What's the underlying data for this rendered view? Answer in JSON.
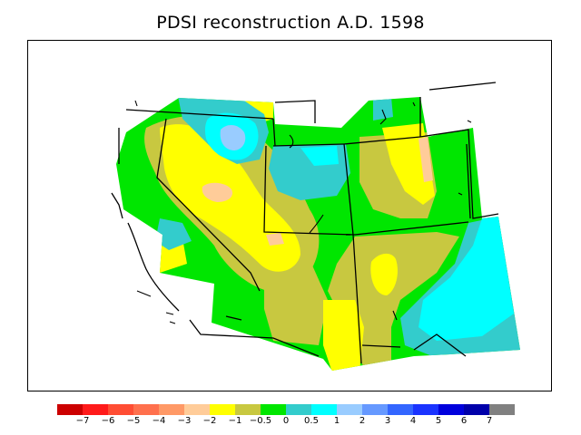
{
  "title": "PDSI reconstruction A.D. 1598",
  "legend": {
    "colors": [
      "#cc0000",
      "#ff1a1a",
      "#ff4d33",
      "#ff704d",
      "#ff9966",
      "#ffcc99",
      "#ffff00",
      "#c8c840",
      "#00e600",
      "#33cccc",
      "#00ffff",
      "#99ccff",
      "#6699ff",
      "#3366ff",
      "#1a33ff",
      "#0000dd",
      "#0000aa",
      "#808080"
    ],
    "labels": [
      "−7",
      "−6",
      "−5",
      "−4",
      "−3",
      "−2",
      "−1",
      "−0.5",
      "0",
      "0.5",
      "1",
      "2",
      "3",
      "4",
      "5",
      "6",
      "7"
    ]
  },
  "map_colors": {
    "green": "#00e600",
    "olive": "#c8c840",
    "yellow": "#ffff00",
    "teal": "#33cccc",
    "cyan": "#00ffff",
    "lightblue": "#99ccff",
    "peach": "#ffcc99"
  }
}
